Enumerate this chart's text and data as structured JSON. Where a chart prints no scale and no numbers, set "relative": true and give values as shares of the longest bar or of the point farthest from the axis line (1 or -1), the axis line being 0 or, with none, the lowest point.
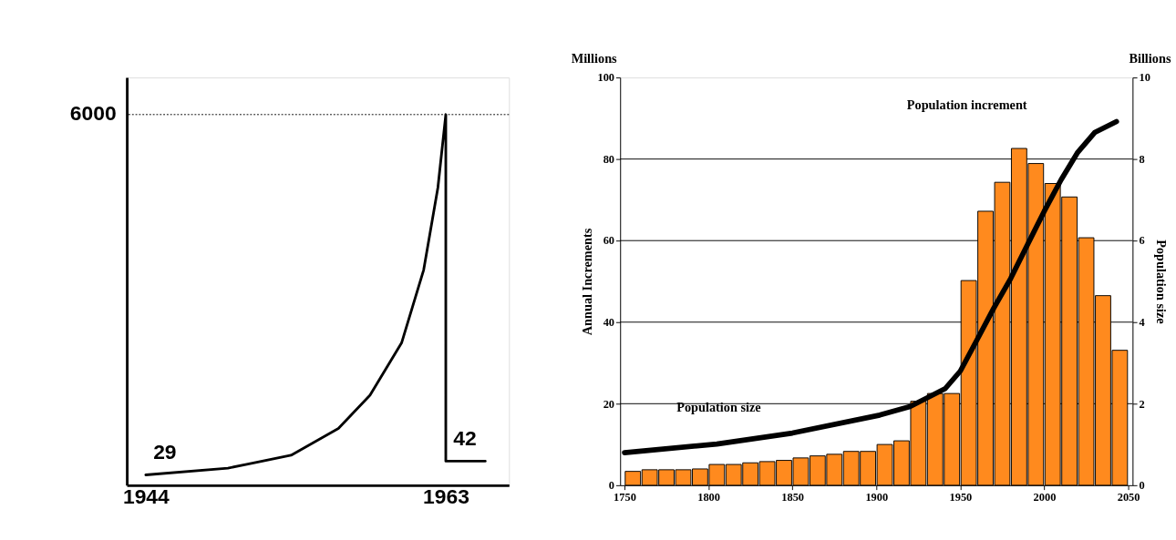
{
  "chart_data": [
    {
      "type": "line",
      "relative": true,
      "x": [
        1944,
        1949.2,
        1953.2,
        1956.2,
        1958.2,
        1960.2,
        1961.6,
        1962.5,
        1963,
        1963,
        1965.5
      ],
      "series": [
        {
          "color": "#000000",
          "values": [
            0.028,
            0.046,
            0.081,
            0.153,
            0.243,
            0.384,
            0.581,
            0.803,
            1,
            0.065,
            0.065
          ]
        }
      ],
      "xlim": [
        1942.8,
        1967
      ],
      "xticks": [
        1944,
        1963
      ],
      "marker": "none",
      "line_style": "solid",
      "ref_lines": [
        {
          "axis": "y",
          "value": 1,
          "line_style": "dotted",
          "color": "#000000"
        }
      ],
      "annotations": [
        "6000",
        {
          "text": "29",
          "x": 1944,
          "y": 0.028
        },
        {
          "text": "42",
          "x": 1963,
          "y": 0.065
        }
      ]
    },
    {
      "type": "bar",
      "x": [
        1755,
        1765,
        1775,
        1785,
        1795,
        1805,
        1815,
        1825,
        1835,
        1845,
        1855,
        1865,
        1875,
        1885,
        1895,
        1905,
        1915,
        1925,
        1935,
        1945,
        1955,
        1965,
        1975,
        1985,
        1995,
        2005,
        2015,
        2025,
        2035,
        2045
      ],
      "series": [
        {
          "name": "Population increment",
          "type": "bar",
          "color": "#ff8a1e",
          "values": [
            3.4,
            3.8,
            3.8,
            3.8,
            4.0,
            5.1,
            5.1,
            5.5,
            5.8,
            6.1,
            6.7,
            7.2,
            7.6,
            8.3,
            8.3,
            10.0,
            10.9,
            20.6,
            22.5,
            22.5,
            50.2,
            67.2,
            74.3,
            82.6,
            78.9,
            74.0,
            70.7,
            60.7,
            46.5,
            33.1
          ]
        },
        {
          "name": "Population size",
          "type": "line",
          "axis": "y2",
          "color": "#000000",
          "x": [
            1750,
            1805,
            1850,
            1902,
            1920,
            1941,
            1950,
            1960,
            1970,
            1980,
            1990,
            2000,
            2010,
            2020,
            2030,
            2043
          ],
          "values": [
            0.8,
            1.01,
            1.28,
            1.72,
            1.93,
            2.37,
            2.8,
            3.57,
            4.35,
            5.07,
            5.9,
            6.72,
            7.49,
            8.17,
            8.65,
            8.92
          ]
        }
      ],
      "ylabel": "Annual Increments",
      "y2label": "Population size",
      "annotations": [
        "Millions",
        "Billions"
      ],
      "xlim": [
        1750,
        2050
      ],
      "ylim": [
        0,
        100
      ],
      "y2lim": [
        0,
        10
      ],
      "xticks": [
        1750,
        1800,
        1850,
        1900,
        1950,
        2000,
        2050
      ],
      "yticks": [
        0,
        20,
        40,
        60,
        80,
        100
      ],
      "y2ticks": [
        0,
        2,
        4,
        6,
        8,
        10
      ],
      "grid": "y",
      "marker": "none"
    }
  ]
}
